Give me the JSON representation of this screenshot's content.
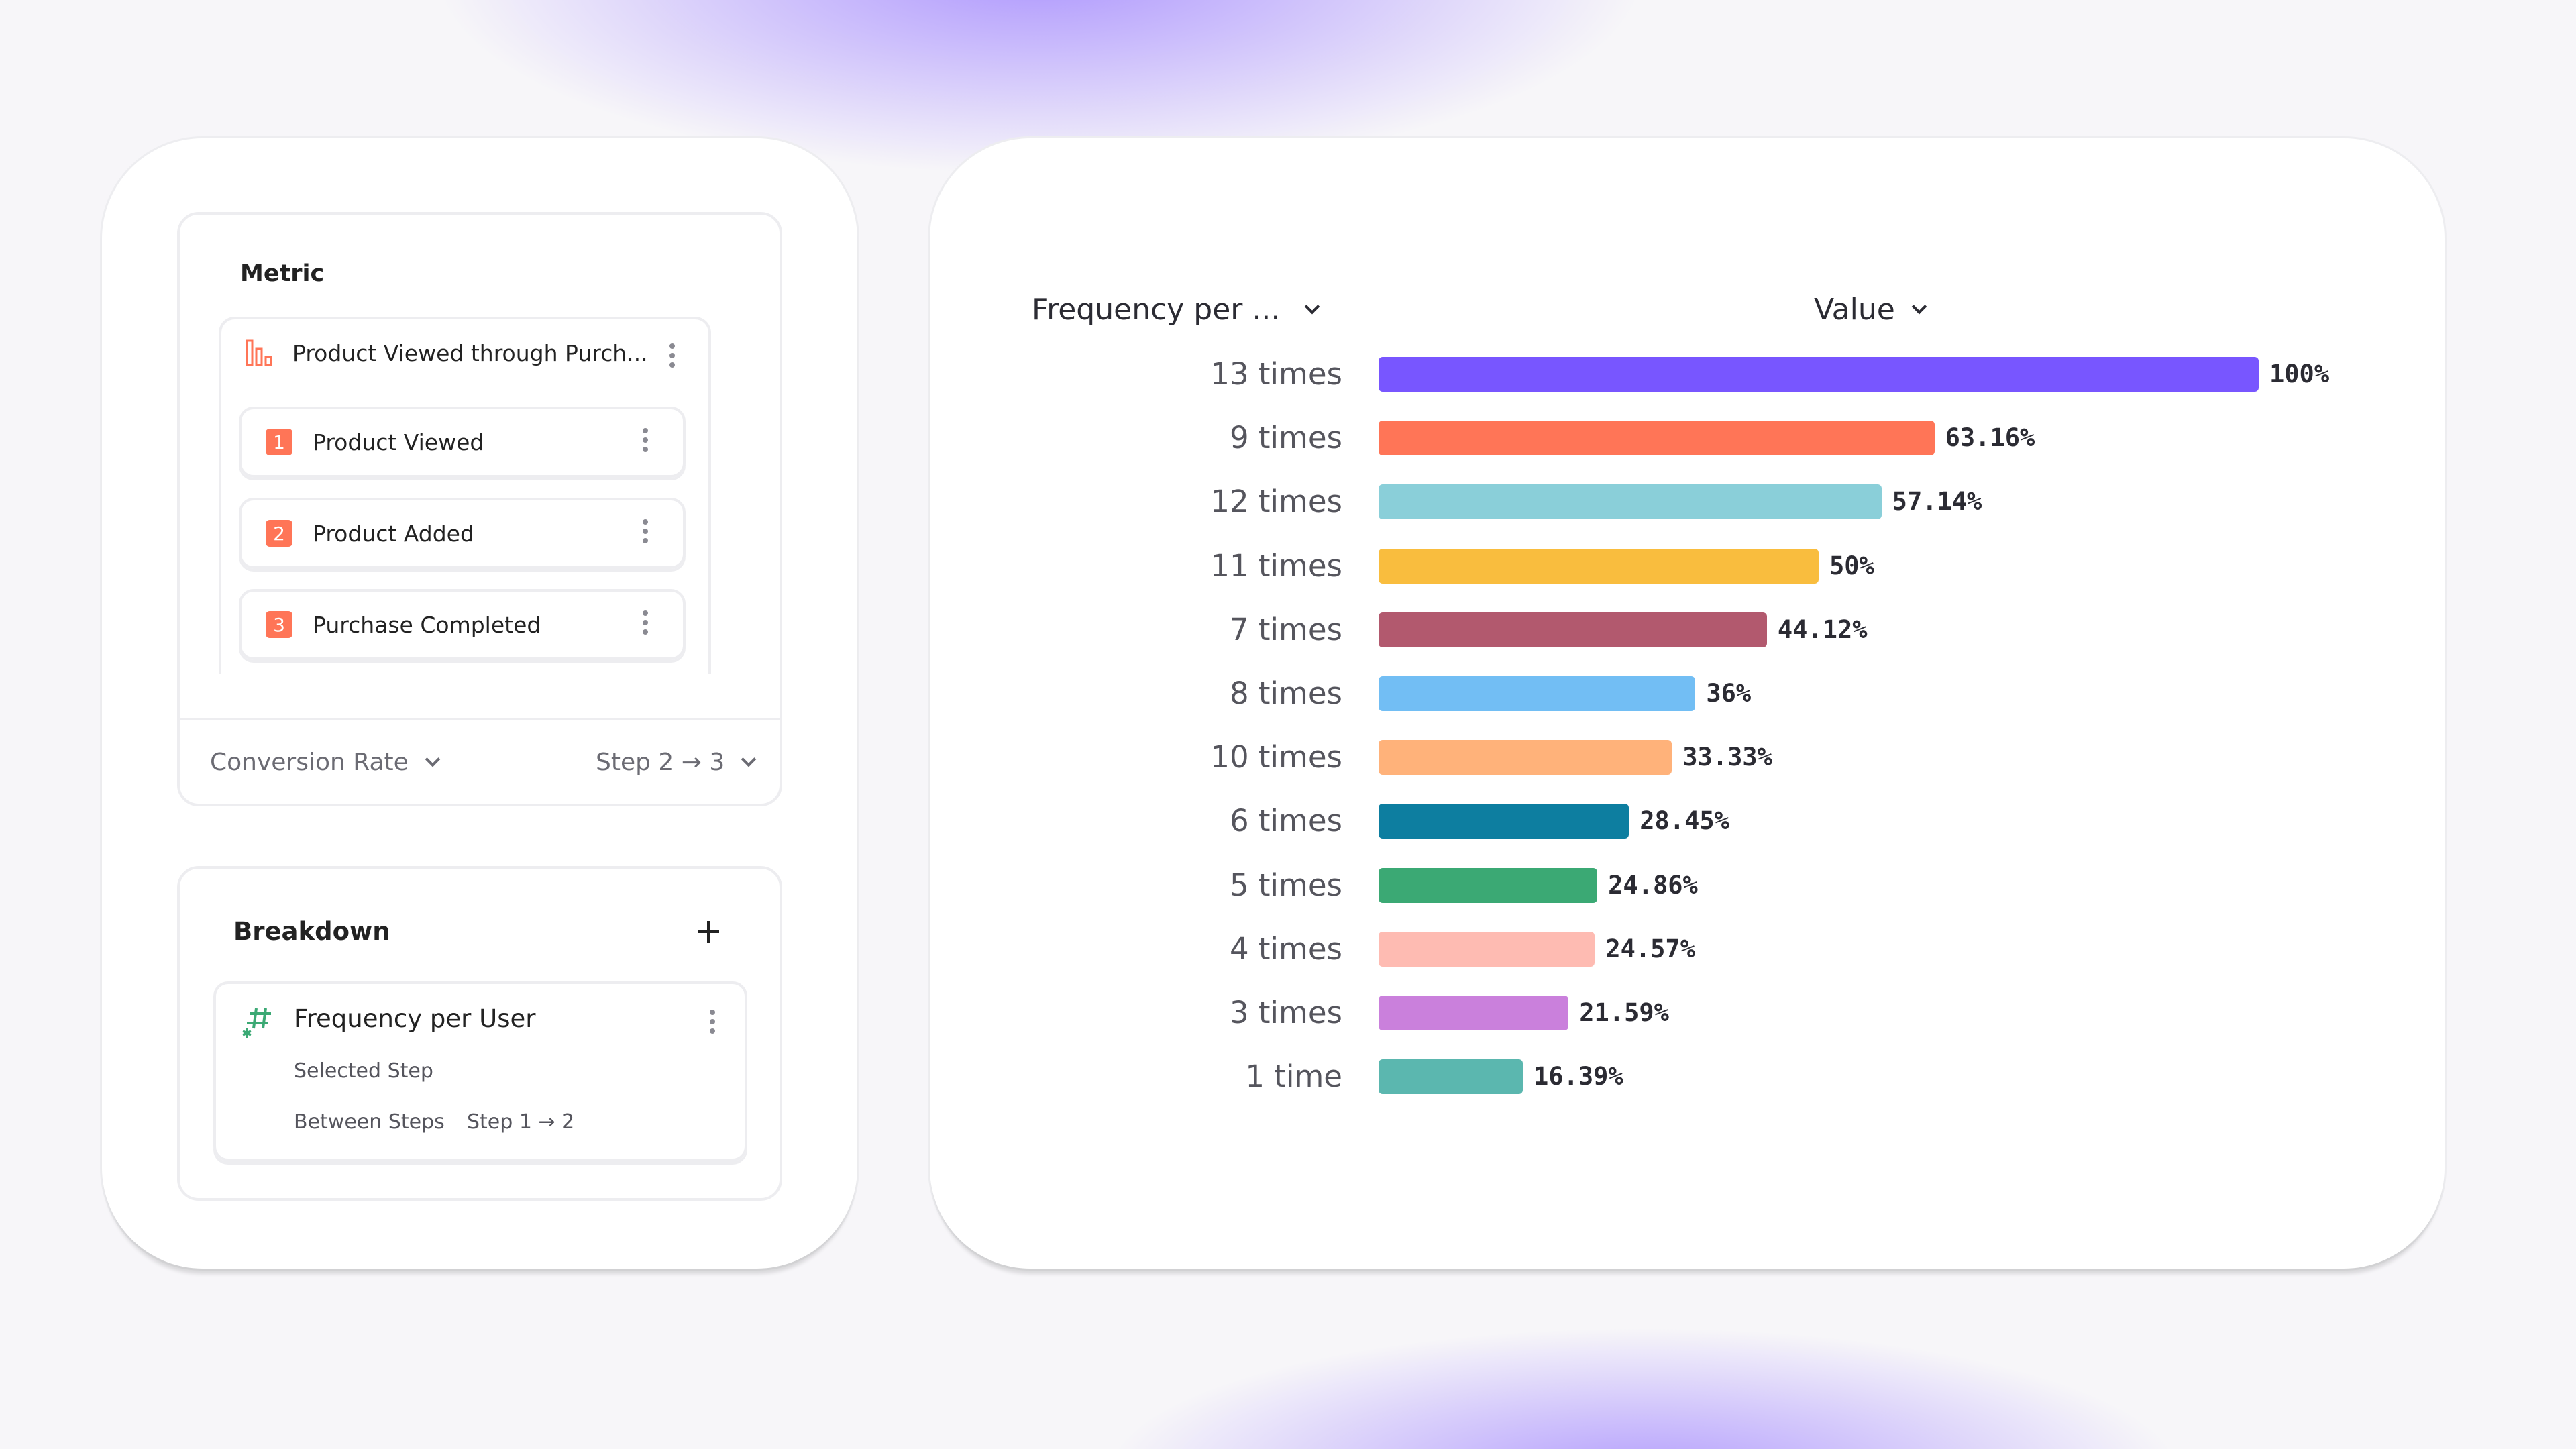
{
  "metric": {
    "title": "Metric",
    "funnel_name": "Product Viewed through Purch...",
    "funnel_icon": "funnel-bars-icon",
    "steps": [
      {
        "number": "1",
        "label": "Product Viewed"
      },
      {
        "number": "2",
        "label": "Product Added"
      },
      {
        "number": "3",
        "label": "Purchase Completed"
      }
    ],
    "measure": "Conversion Rate",
    "step_range": "Step 2 → 3",
    "accent": "#ff7557"
  },
  "breakdown": {
    "title": "Breakdown",
    "add_icon": "plus-icon",
    "property": "Frequency per User",
    "property_icon": "hash-icon",
    "selected_step_label": "Selected Step",
    "between_steps_label": "Between Steps",
    "between_steps_value": "Step 1 → 2"
  },
  "chart_header": {
    "group_by": "Frequency per ...",
    "value_column": "Value"
  },
  "chart_data": {
    "type": "bar",
    "orientation": "horizontal",
    "categories": [
      "13 times",
      "9 times",
      "12 times",
      "11 times",
      "7 times",
      "8 times",
      "10 times",
      "6 times",
      "5 times",
      "4 times",
      "3 times",
      "1 time"
    ],
    "values": [
      100,
      63.16,
      57.14,
      50,
      44.12,
      36,
      33.33,
      28.45,
      24.86,
      24.57,
      21.59,
      16.39
    ],
    "labels": [
      "100%",
      "63.16%",
      "57.14%",
      "50%",
      "44.12%",
      "36%",
      "33.33%",
      "28.45%",
      "24.86%",
      "24.57%",
      "21.59%",
      "16.39%"
    ],
    "colors": [
      "#7856ff",
      "#ff7557",
      "#8acfd9",
      "#f9bd3e",
      "#b2596e",
      "#72bef4",
      "#ffb27a",
      "#0d7ea0",
      "#3ba974",
      "#febbb2",
      "#ca80dc",
      "#5bb7af"
    ],
    "xlim": [
      0,
      100
    ],
    "grid": false
  }
}
